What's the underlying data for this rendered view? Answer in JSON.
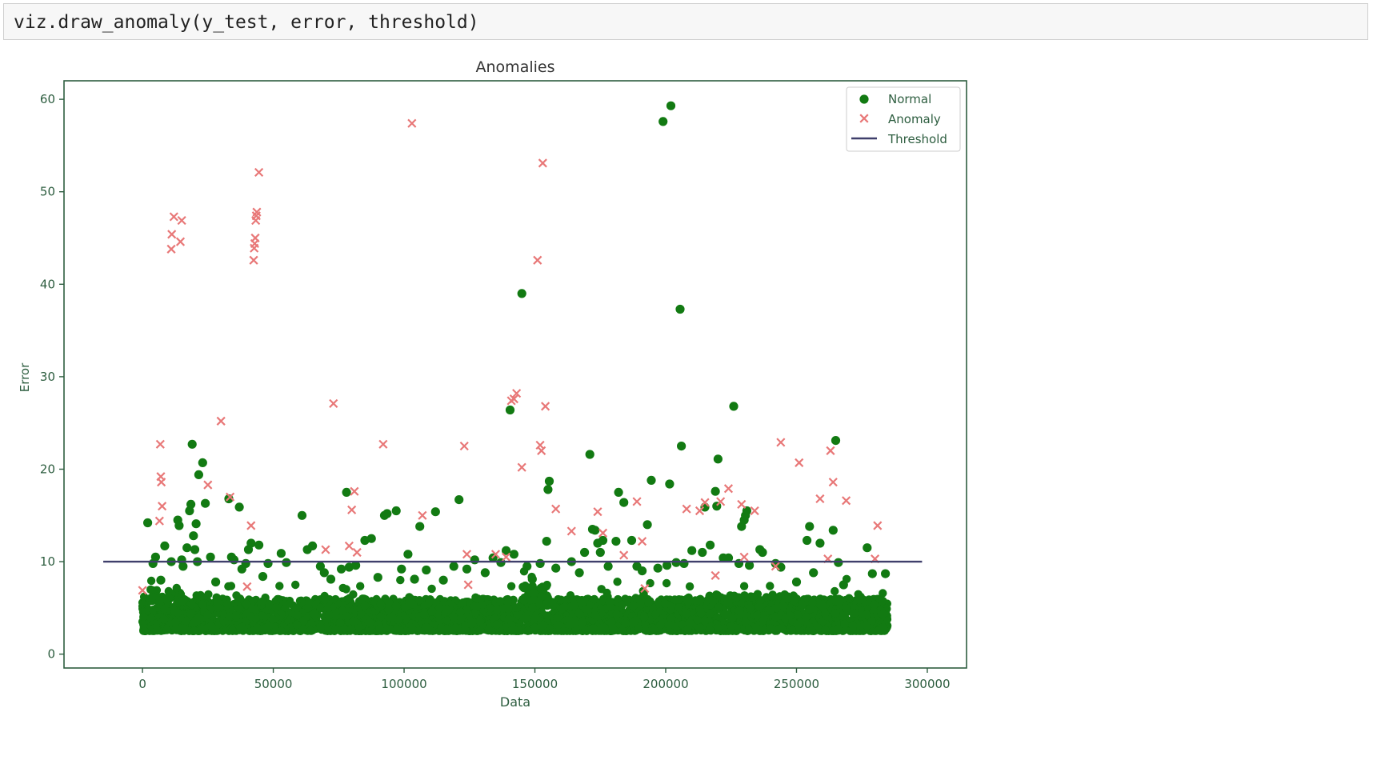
{
  "code_cell": {
    "code": "viz.draw_anomaly(y_test, error, threshold)"
  },
  "chart_data": {
    "type": "scatter",
    "title": "Anomalies",
    "xlabel": "Data",
    "ylabel": "Error",
    "xlim": [
      -30000,
      315000
    ],
    "ylim": [
      -1.5,
      62
    ],
    "x_ticks": [
      0,
      50000,
      100000,
      150000,
      200000,
      250000,
      300000
    ],
    "y_ticks": [
      0,
      10,
      20,
      30,
      40,
      50,
      60
    ],
    "grid": false,
    "legend_position": "top-right",
    "legend": [
      "Normal",
      "Anomaly",
      "Threshold"
    ],
    "colors": {
      "normal": "#127a12",
      "anomaly": "#e87878",
      "threshold": "#3f3f6b",
      "axis": "#2e5e40"
    },
    "threshold": {
      "name": "Threshold",
      "y": 10,
      "x_range": [
        -15000,
        298000
      ]
    },
    "series": [
      {
        "name": "Normal",
        "marker": "circle",
        "dense_band": {
          "x_range": [
            0,
            285000
          ],
          "y_range": [
            2.5,
            6
          ],
          "approx_points": 4000
        },
        "points": [
          [
            2000,
            14.2
          ],
          [
            4000,
            9.8
          ],
          [
            5000,
            10.5
          ],
          [
            7000,
            8
          ],
          [
            8500,
            11.7
          ],
          [
            11000,
            10
          ],
          [
            13500,
            14.5
          ],
          [
            14000,
            13.9
          ],
          [
            15000,
            10.2
          ],
          [
            15500,
            9.5
          ],
          [
            17000,
            11.5
          ],
          [
            18000,
            15.5
          ],
          [
            18500,
            16.2
          ],
          [
            19000,
            22.7
          ],
          [
            19500,
            12.8
          ],
          [
            20000,
            11.3
          ],
          [
            20500,
            14.1
          ],
          [
            21000,
            10
          ],
          [
            21500,
            19.4
          ],
          [
            23000,
            20.7
          ],
          [
            24000,
            16.3
          ],
          [
            26000,
            10.5
          ],
          [
            28000,
            7.8
          ],
          [
            33000,
            16.8
          ],
          [
            34000,
            10.5
          ],
          [
            35000,
            10.2
          ],
          [
            37000,
            15.9
          ],
          [
            38000,
            9.2
          ],
          [
            39500,
            9.8
          ],
          [
            40500,
            11.3
          ],
          [
            41500,
            12
          ],
          [
            44500,
            11.8
          ],
          [
            46000,
            8.4
          ],
          [
            48000,
            9.8
          ],
          [
            53000,
            10.9
          ],
          [
            55000,
            9.9
          ],
          [
            61000,
            15
          ],
          [
            63000,
            11.3
          ],
          [
            65000,
            11.7
          ],
          [
            68000,
            9.5
          ],
          [
            69500,
            8.8
          ],
          [
            72000,
            8.1
          ],
          [
            76000,
            9.2
          ],
          [
            78000,
            17.5
          ],
          [
            79000,
            9.4
          ],
          [
            81500,
            9.6
          ],
          [
            85000,
            12.3
          ],
          [
            87500,
            12.5
          ],
          [
            90000,
            8.3
          ],
          [
            92500,
            15
          ],
          [
            93500,
            15.2
          ],
          [
            97000,
            15.5
          ],
          [
            99000,
            9.2
          ],
          [
            101500,
            10.8
          ],
          [
            104000,
            8.1
          ],
          [
            106000,
            13.8
          ],
          [
            108500,
            9.1
          ],
          [
            112000,
            15.4
          ],
          [
            115000,
            8
          ],
          [
            119000,
            9.5
          ],
          [
            121000,
            16.7
          ],
          [
            124000,
            9.2
          ],
          [
            127000,
            10.2
          ],
          [
            131000,
            8.8
          ],
          [
            134000,
            10.4
          ],
          [
            137000,
            9.9
          ],
          [
            139000,
            11.2
          ],
          [
            140500,
            26.4
          ],
          [
            142000,
            10.8
          ],
          [
            145000,
            39
          ],
          [
            147000,
            9.5
          ],
          [
            149000,
            8.1
          ],
          [
            152000,
            9.8
          ],
          [
            155000,
            17.8
          ],
          [
            155500,
            18.7
          ],
          [
            154500,
            12.2
          ],
          [
            158000,
            9.3
          ],
          [
            164000,
            10
          ],
          [
            167000,
            8.8
          ],
          [
            169000,
            11
          ],
          [
            171000,
            21.6
          ],
          [
            172000,
            13.5
          ],
          [
            173000,
            13.4
          ],
          [
            174000,
            12
          ],
          [
            175000,
            11
          ],
          [
            176000,
            12.3
          ],
          [
            178000,
            9.5
          ],
          [
            181000,
            12.2
          ],
          [
            182000,
            17.5
          ],
          [
            184000,
            16.4
          ],
          [
            187000,
            12.3
          ],
          [
            189000,
            9.5
          ],
          [
            191000,
            9
          ],
          [
            193000,
            14
          ],
          [
            194500,
            18.8
          ],
          [
            197000,
            9.3
          ],
          [
            199000,
            57.6
          ],
          [
            200500,
            9.6
          ],
          [
            201500,
            18.4
          ],
          [
            202000,
            59.3
          ],
          [
            204000,
            9.9
          ],
          [
            205500,
            37.3
          ],
          [
            206000,
            22.5
          ],
          [
            207000,
            9.8
          ],
          [
            210000,
            11.2
          ],
          [
            214000,
            11
          ],
          [
            215000,
            15.9
          ],
          [
            217000,
            11.8
          ],
          [
            219000,
            17.6
          ],
          [
            219500,
            16
          ],
          [
            220000,
            21.1
          ],
          [
            222000,
            10.4
          ],
          [
            224000,
            10.4
          ],
          [
            226000,
            26.8
          ],
          [
            228000,
            9.8
          ],
          [
            229000,
            13.8
          ],
          [
            230000,
            14.5
          ],
          [
            230500,
            15
          ],
          [
            231000,
            15.5
          ],
          [
            232000,
            9.6
          ],
          [
            236000,
            11.3
          ],
          [
            237000,
            11
          ],
          [
            242000,
            9.8
          ],
          [
            244000,
            9.4
          ],
          [
            250000,
            7.8
          ],
          [
            254000,
            12.3
          ],
          [
            255000,
            13.8
          ],
          [
            256500,
            8.8
          ],
          [
            259000,
            12
          ],
          [
            264000,
            13.4
          ],
          [
            265000,
            23.1
          ],
          [
            266000,
            9.9
          ],
          [
            268000,
            7.5
          ],
          [
            277000,
            11.5
          ],
          [
            279000,
            8.7
          ],
          [
            284000,
            8.7
          ]
        ]
      },
      {
        "name": "Anomaly",
        "marker": "x",
        "points": [
          [
            0,
            6.9
          ],
          [
            6500,
            14.4
          ],
          [
            6800,
            22.7
          ],
          [
            7000,
            19.2
          ],
          [
            7200,
            18.6
          ],
          [
            7500,
            16
          ],
          [
            11000,
            43.8
          ],
          [
            11200,
            45.4
          ],
          [
            12000,
            47.3
          ],
          [
            14500,
            44.6
          ],
          [
            15000,
            46.9
          ],
          [
            25000,
            18.3
          ],
          [
            30000,
            25.2
          ],
          [
            33500,
            17
          ],
          [
            40000,
            7.3
          ],
          [
            41500,
            13.9
          ],
          [
            42500,
            42.6
          ],
          [
            42700,
            43.9
          ],
          [
            42900,
            44.4
          ],
          [
            43100,
            45
          ],
          [
            43300,
            46.9
          ],
          [
            43500,
            47.4
          ],
          [
            43700,
            47.8
          ],
          [
            44500,
            52.1
          ],
          [
            70000,
            11.3
          ],
          [
            73000,
            27.1
          ],
          [
            79000,
            11.7
          ],
          [
            80000,
            15.6
          ],
          [
            81000,
            17.6
          ],
          [
            82000,
            11
          ],
          [
            92000,
            22.7
          ],
          [
            103000,
            57.4
          ],
          [
            107000,
            15
          ],
          [
            123000,
            22.5
          ],
          [
            124000,
            10.8
          ],
          [
            124500,
            7.5
          ],
          [
            135000,
            10.8
          ],
          [
            139000,
            10.5
          ],
          [
            141000,
            27.4
          ],
          [
            142000,
            27.6
          ],
          [
            143000,
            28.2
          ],
          [
            145000,
            20.2
          ],
          [
            151000,
            42.6
          ],
          [
            152000,
            22.6
          ],
          [
            152500,
            22
          ],
          [
            153000,
            53.1
          ],
          [
            154000,
            26.8
          ],
          [
            158000,
            15.7
          ],
          [
            164000,
            13.3
          ],
          [
            174000,
            15.4
          ],
          [
            176000,
            13.1
          ],
          [
            184000,
            10.7
          ],
          [
            189000,
            16.5
          ],
          [
            191000,
            12.2
          ],
          [
            192000,
            7.1
          ],
          [
            208000,
            15.7
          ],
          [
            213000,
            15.5
          ],
          [
            215000,
            16.4
          ],
          [
            219000,
            8.5
          ],
          [
            221000,
            16.5
          ],
          [
            224000,
            17.9
          ],
          [
            229000,
            16.2
          ],
          [
            230000,
            10.5
          ],
          [
            234000,
            15.5
          ],
          [
            242000,
            9.5
          ],
          [
            244000,
            22.9
          ],
          [
            251000,
            20.7
          ],
          [
            259000,
            16.8
          ],
          [
            262000,
            10.3
          ],
          [
            263000,
            22
          ],
          [
            264000,
            18.6
          ],
          [
            269000,
            16.6
          ],
          [
            280000,
            10.3
          ],
          [
            281000,
            13.9
          ]
        ]
      }
    ]
  }
}
